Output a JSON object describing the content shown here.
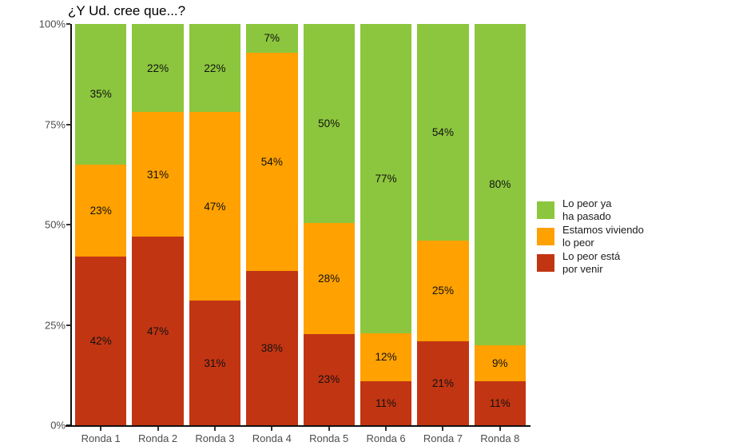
{
  "chart_data": {
    "type": "bar",
    "stacked": true,
    "title": "¿Y Ud. cree que...?",
    "categories": [
      "Ronda 1",
      "Ronda 2",
      "Ronda 3",
      "Ronda 4",
      "Ronda 5",
      "Ronda 6",
      "Ronda 7",
      "Ronda 8"
    ],
    "series": [
      {
        "name": "Lo peor está por venir",
        "color": "#C23512",
        "values": [
          42,
          47,
          31,
          38,
          23,
          11,
          21,
          11
        ]
      },
      {
        "name": "Estamos viviendo lo peor",
        "color": "#FFA100",
        "values": [
          23,
          31,
          47,
          54,
          28,
          12,
          25,
          9
        ]
      },
      {
        "name": "Lo peor ya ha pasado",
        "color": "#8CC63E",
        "values": [
          35,
          22,
          22,
          7,
          50,
          77,
          54,
          80
        ]
      }
    ],
    "value_label_suffix": "%",
    "ylim": [
      0,
      100
    ],
    "yticks": [
      "0%",
      "25%",
      "50%",
      "75%",
      "100%"
    ],
    "grid": false,
    "legend": {
      "position": "right",
      "entries": [
        {
          "color": "#8CC63E",
          "label_lines": [
            "Lo peor ya",
            "ha pasado"
          ]
        },
        {
          "color": "#FFA100",
          "label_lines": [
            "Estamos viviendo",
            "lo peor"
          ]
        },
        {
          "color": "#C23512",
          "label_lines": [
            "Lo peor está",
            "por venir"
          ]
        }
      ]
    },
    "axis_text_color": "#4d4d4d",
    "axis_line_color": "#111111"
  }
}
